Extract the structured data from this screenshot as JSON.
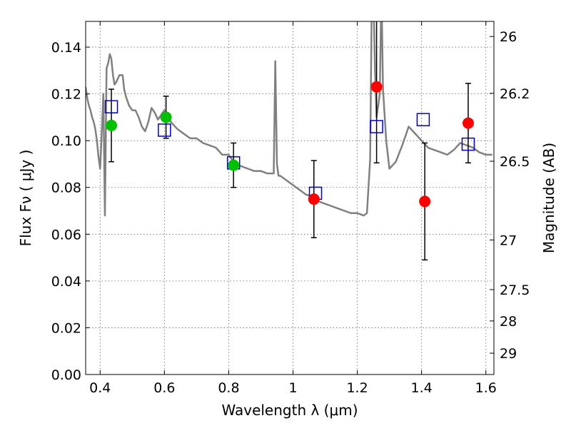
{
  "chart_data": {
    "type": "scatter",
    "xlabel": "Wavelength  λ (μm)",
    "ylabel": "Flux  Fν  ( μJy )",
    "y2label": "Magnitude (AB)",
    "xlim": [
      0.355,
      1.625
    ],
    "ylim": [
      0.0,
      0.151
    ],
    "x_ticks": [
      0.4,
      0.6,
      0.8,
      1.0,
      1.2,
      1.4,
      1.6
    ],
    "x_tick_labels": [
      "0.4",
      "0.6",
      "0.8",
      "1",
      "1.2",
      "1.4",
      "1.6"
    ],
    "y_ticks": [
      0.0,
      0.02,
      0.04,
      0.06,
      0.08,
      0.1,
      0.12,
      0.14
    ],
    "y_tick_labels": [
      "0.00",
      "0.02",
      "0.04",
      "0.06",
      "0.08",
      "0.10",
      "0.12",
      "0.14"
    ],
    "y2_ticks": [
      26,
      26.2,
      26.5,
      27,
      27.5,
      28,
      29
    ],
    "y2_tick_labels": [
      "26",
      "26.2",
      "26.5",
      "27",
      "27.5",
      "28",
      "29"
    ],
    "grid": true,
    "colors": {
      "model": "#808080",
      "green": "#00c000",
      "red": "#ff0000",
      "square": "#0000c0",
      "errorbar": "#000000"
    },
    "model_spectrum": {
      "x": [
        0.355,
        0.36,
        0.365,
        0.37,
        0.375,
        0.38,
        0.385,
        0.39,
        0.395,
        0.4,
        0.405,
        0.41,
        0.415,
        0.42,
        0.425,
        0.43,
        0.435,
        0.44,
        0.445,
        0.45,
        0.46,
        0.47,
        0.475,
        0.48,
        0.49,
        0.5,
        0.51,
        0.52,
        0.53,
        0.54,
        0.55,
        0.56,
        0.57,
        0.58,
        0.59,
        0.6,
        0.61,
        0.62,
        0.64,
        0.66,
        0.68,
        0.7,
        0.72,
        0.74,
        0.76,
        0.78,
        0.8,
        0.82,
        0.84,
        0.86,
        0.88,
        0.9,
        0.92,
        0.94,
        0.945,
        0.95,
        0.955,
        0.96,
        0.98,
        1.0,
        1.02,
        1.04,
        1.06,
        1.08,
        1.1,
        1.12,
        1.14,
        1.16,
        1.18,
        1.2,
        1.22,
        1.23,
        1.24,
        1.245,
        1.25,
        1.255,
        1.26,
        1.265,
        1.27,
        1.275,
        1.28,
        1.29,
        1.3,
        1.32,
        1.34,
        1.36,
        1.38,
        1.4,
        1.42,
        1.44,
        1.46,
        1.48,
        1.5,
        1.52,
        1.54,
        1.56,
        1.58,
        1.6,
        1.62
      ],
      "y": [
        0.123,
        0.118,
        0.115,
        0.113,
        0.11,
        0.108,
        0.105,
        0.1,
        0.093,
        0.088,
        0.103,
        0.12,
        0.068,
        0.131,
        0.133,
        0.137,
        0.135,
        0.128,
        0.124,
        0.125,
        0.128,
        0.128,
        0.122,
        0.119,
        0.115,
        0.113,
        0.113,
        0.11,
        0.106,
        0.104,
        0.108,
        0.114,
        0.112,
        0.109,
        0.111,
        0.113,
        0.11,
        0.108,
        0.105,
        0.103,
        0.101,
        0.101,
        0.099,
        0.098,
        0.097,
        0.094,
        0.094,
        0.09,
        0.089,
        0.088,
        0.087,
        0.087,
        0.086,
        0.086,
        0.134,
        0.09,
        0.085,
        0.085,
        0.083,
        0.081,
        0.079,
        0.077,
        0.076,
        0.074,
        0.073,
        0.072,
        0.071,
        0.07,
        0.069,
        0.069,
        0.068,
        0.069,
        0.092,
        0.16,
        0.165,
        0.13,
        0.11,
        0.115,
        0.12,
        0.165,
        0.122,
        0.1,
        0.088,
        0.091,
        0.098,
        0.106,
        0.103,
        0.1,
        0.097,
        0.096,
        0.095,
        0.094,
        0.096,
        0.099,
        0.098,
        0.097,
        0.095,
        0.094,
        0.094
      ]
    },
    "squares": {
      "x": [
        0.435,
        0.6,
        0.815,
        1.07,
        1.26,
        1.405,
        1.545
      ],
      "y": [
        0.1145,
        0.1045,
        0.0905,
        0.0775,
        0.106,
        0.109,
        0.0985
      ]
    },
    "green_points": {
      "x": [
        0.435,
        0.605,
        0.815
      ],
      "y": [
        0.1065,
        0.11,
        0.0895
      ],
      "err": [
        0.0155,
        0.009,
        0.0095
      ]
    },
    "red_points": {
      "x": [
        1.065,
        1.26,
        1.41,
        1.545
      ],
      "y": [
        0.075,
        0.123,
        0.074,
        0.1075
      ],
      "err": [
        0.0165,
        0.0325,
        0.025,
        0.017
      ]
    }
  }
}
